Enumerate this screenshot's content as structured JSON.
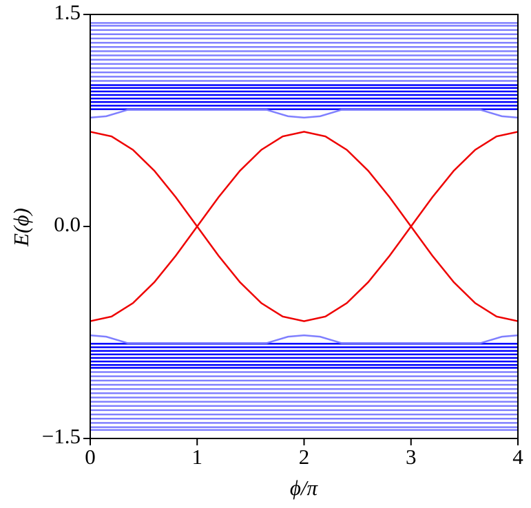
{
  "chart_data": {
    "type": "line",
    "xlabel": "ϕ/π",
    "ylabel": "E(ϕ)",
    "xlim": [
      0,
      4
    ],
    "ylim": [
      -1.5,
      1.5
    ],
    "xticks": [
      0,
      1,
      2,
      3,
      4
    ],
    "yticks": [
      {
        "value": -1.5,
        "label": "−1.5"
      },
      {
        "value": 0,
        "label": "0.0"
      },
      {
        "value": 1.5,
        "label": "1.5"
      }
    ],
    "x": [
      0,
      0.2,
      0.4,
      0.6,
      0.8,
      1,
      1.2,
      1.4,
      1.6,
      1.8,
      2,
      2.2,
      2.4,
      2.6,
      2.8,
      3,
      3.2,
      3.4,
      3.6,
      3.8,
      4
    ],
    "series": [
      {
        "color": "#7f7fff",
        "x": [
          0,
          4
        ],
        "values": [
          1.03,
          1.03
        ]
      },
      {
        "color": "#7f7fff",
        "x": [
          0,
          4
        ],
        "values": [
          1.06,
          1.06
        ]
      },
      {
        "color": "#7f7fff",
        "x": [
          0,
          4
        ],
        "values": [
          1.09,
          1.09
        ]
      },
      {
        "color": "#7f7fff",
        "x": [
          0,
          4
        ],
        "values": [
          1.12,
          1.12
        ]
      },
      {
        "color": "#7f7fff",
        "x": [
          0,
          4
        ],
        "values": [
          1.15,
          1.15
        ]
      },
      {
        "color": "#7f7fff",
        "x": [
          0,
          4
        ],
        "values": [
          1.18,
          1.18
        ]
      },
      {
        "color": "#7f7fff",
        "x": [
          0,
          4
        ],
        "values": [
          1.21,
          1.21
        ]
      },
      {
        "color": "#7f7fff",
        "x": [
          0,
          4
        ],
        "values": [
          1.24,
          1.24
        ]
      },
      {
        "color": "#7f7fff",
        "x": [
          0,
          4
        ],
        "values": [
          1.27,
          1.27
        ]
      },
      {
        "color": "#7f7fff",
        "x": [
          0,
          4
        ],
        "values": [
          1.3,
          1.3
        ]
      },
      {
        "color": "#7f7fff",
        "x": [
          0,
          4
        ],
        "values": [
          1.33,
          1.33
        ]
      },
      {
        "color": "#7f7fff",
        "x": [
          0,
          4
        ],
        "values": [
          1.36,
          1.36
        ]
      },
      {
        "color": "#7f7fff",
        "x": [
          0,
          4
        ],
        "values": [
          1.39,
          1.39
        ]
      },
      {
        "color": "#7f7fff",
        "x": [
          0,
          4
        ],
        "values": [
          1.42,
          1.42
        ]
      },
      {
        "color": "#7f7fff",
        "x": [
          0,
          4
        ],
        "values": [
          1.44,
          1.44
        ]
      },
      {
        "color": "#0000ff",
        "x": [
          0,
          4
        ],
        "values": [
          0.83,
          0.83
        ]
      },
      {
        "color": "#0000ff",
        "x": [
          0,
          4
        ],
        "values": [
          0.855,
          0.855
        ]
      },
      {
        "color": "#0000ff",
        "x": [
          0,
          4
        ],
        "values": [
          0.88,
          0.88
        ]
      },
      {
        "color": "#0000ff",
        "x": [
          0,
          4
        ],
        "values": [
          0.905,
          0.905
        ]
      },
      {
        "color": "#0000ff",
        "x": [
          0,
          4
        ],
        "values": [
          0.93,
          0.93
        ]
      },
      {
        "color": "#0000ff",
        "x": [
          0,
          4
        ],
        "values": [
          0.955,
          0.955
        ]
      },
      {
        "color": "#0000ff",
        "x": [
          0,
          4
        ],
        "values": [
          0.98,
          0.98
        ]
      },
      {
        "color": "#0000ff",
        "x": [
          0,
          4
        ],
        "values": [
          1.0,
          1.0
        ]
      },
      {
        "color": "#7f7fff",
        "x": [
          0,
          0.15,
          0.35,
          1.65,
          1.85,
          2,
          2.15,
          2.35,
          3.65,
          3.85,
          4
        ],
        "values": [
          0.77,
          0.78,
          0.825,
          0.825,
          0.78,
          0.77,
          0.78,
          0.825,
          0.825,
          0.78,
          0.77
        ]
      },
      {
        "color": "#7f7fff",
        "x": [
          0,
          4
        ],
        "values": [
          -1.03,
          -1.03
        ]
      },
      {
        "color": "#7f7fff",
        "x": [
          0,
          4
        ],
        "values": [
          -1.06,
          -1.06
        ]
      },
      {
        "color": "#7f7fff",
        "x": [
          0,
          4
        ],
        "values": [
          -1.09,
          -1.09
        ]
      },
      {
        "color": "#7f7fff",
        "x": [
          0,
          4
        ],
        "values": [
          -1.12,
          -1.12
        ]
      },
      {
        "color": "#7f7fff",
        "x": [
          0,
          4
        ],
        "values": [
          -1.15,
          -1.15
        ]
      },
      {
        "color": "#7f7fff",
        "x": [
          0,
          4
        ],
        "values": [
          -1.18,
          -1.18
        ]
      },
      {
        "color": "#7f7fff",
        "x": [
          0,
          4
        ],
        "values": [
          -1.21,
          -1.21
        ]
      },
      {
        "color": "#7f7fff",
        "x": [
          0,
          4
        ],
        "values": [
          -1.24,
          -1.24
        ]
      },
      {
        "color": "#7f7fff",
        "x": [
          0,
          4
        ],
        "values": [
          -1.27,
          -1.27
        ]
      },
      {
        "color": "#7f7fff",
        "x": [
          0,
          4
        ],
        "values": [
          -1.3,
          -1.3
        ]
      },
      {
        "color": "#7f7fff",
        "x": [
          0,
          4
        ],
        "values": [
          -1.33,
          -1.33
        ]
      },
      {
        "color": "#7f7fff",
        "x": [
          0,
          4
        ],
        "values": [
          -1.36,
          -1.36
        ]
      },
      {
        "color": "#7f7fff",
        "x": [
          0,
          4
        ],
        "values": [
          -1.39,
          -1.39
        ]
      },
      {
        "color": "#7f7fff",
        "x": [
          0,
          4
        ],
        "values": [
          -1.42,
          -1.42
        ]
      },
      {
        "color": "#7f7fff",
        "x": [
          0,
          4
        ],
        "values": [
          -1.44,
          -1.44
        ]
      },
      {
        "color": "#0000ff",
        "x": [
          0,
          4
        ],
        "values": [
          -0.83,
          -0.83
        ]
      },
      {
        "color": "#0000ff",
        "x": [
          0,
          4
        ],
        "values": [
          -0.855,
          -0.855
        ]
      },
      {
        "color": "#0000ff",
        "x": [
          0,
          4
        ],
        "values": [
          -0.88,
          -0.88
        ]
      },
      {
        "color": "#0000ff",
        "x": [
          0,
          4
        ],
        "values": [
          -0.905,
          -0.905
        ]
      },
      {
        "color": "#0000ff",
        "x": [
          0,
          4
        ],
        "values": [
          -0.93,
          -0.93
        ]
      },
      {
        "color": "#0000ff",
        "x": [
          0,
          4
        ],
        "values": [
          -0.955,
          -0.955
        ]
      },
      {
        "color": "#0000ff",
        "x": [
          0,
          4
        ],
        "values": [
          -0.98,
          -0.98
        ]
      },
      {
        "color": "#0000ff",
        "x": [
          0,
          4
        ],
        "values": [
          -1.0,
          -1.0
        ]
      },
      {
        "color": "#7f7fff",
        "x": [
          0,
          0.15,
          0.35,
          1.65,
          1.85,
          2,
          2.15,
          2.35,
          3.65,
          3.85,
          4
        ],
        "values": [
          -0.77,
          -0.78,
          -0.825,
          -0.825,
          -0.78,
          -0.77,
          -0.78,
          -0.825,
          -0.825,
          -0.78,
          -0.77
        ]
      },
      {
        "color": "#ee0000",
        "values": [
          0.67,
          0.637,
          0.542,
          0.394,
          0.207,
          0,
          -0.207,
          -0.394,
          -0.542,
          -0.637,
          -0.67,
          -0.637,
          -0.542,
          -0.394,
          -0.207,
          0,
          0.207,
          0.394,
          0.542,
          0.637,
          0.67
        ]
      },
      {
        "color": "#ee0000",
        "values": [
          -0.67,
          -0.637,
          -0.542,
          -0.394,
          -0.207,
          0,
          0.207,
          0.394,
          0.542,
          0.637,
          0.67,
          0.637,
          0.542,
          0.394,
          0.207,
          0,
          -0.207,
          -0.394,
          -0.542,
          -0.637,
          -0.67
        ]
      }
    ]
  }
}
